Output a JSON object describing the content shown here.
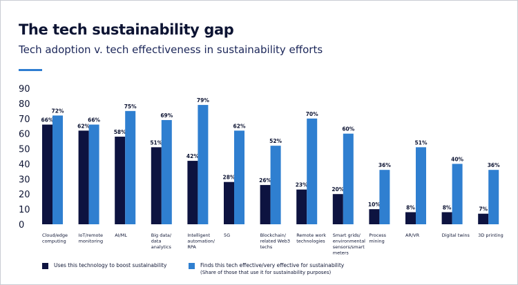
{
  "title": "The tech sustainability gap",
  "subtitle": "Tech adoption v. tech effectiveness in sustainability efforts",
  "colors": {
    "series_uses": "#0d1340",
    "series_effective": "#2f7fd0",
    "accent": "#2e7dd1"
  },
  "legend": {
    "uses": "Uses this technology to boost sustainability",
    "effective": "Finds this tech effective/very effective for sustainability",
    "effective_note": "(Share of those that use it for sustainability purposes)"
  },
  "chart_data": {
    "type": "bar",
    "title": "The tech sustainability gap",
    "subtitle": "Tech adoption v. tech effectiveness in sustainability efforts",
    "categories": [
      [
        "Cloud/edge",
        "computing"
      ],
      [
        "IoT/remote",
        "monitoring"
      ],
      [
        "AI/ML"
      ],
      [
        "Big data/",
        "data",
        "analytics"
      ],
      [
        "Intelligent",
        "automation/",
        "RPA"
      ],
      [
        "5G"
      ],
      [
        "Blockchain/",
        "related Web3",
        "techs"
      ],
      [
        "Remote work",
        "technologies"
      ],
      [
        "Smart grids/",
        "environmental",
        "sensors/smart",
        "meters"
      ],
      [
        "Process",
        "mining"
      ],
      [
        "AR/VR"
      ],
      [
        "Digital twins"
      ],
      [
        "3D printing"
      ]
    ],
    "series": [
      {
        "name": "Uses this technology to boost sustainability",
        "values": [
          66,
          62,
          58,
          51,
          42,
          28,
          26,
          23,
          20,
          10,
          8,
          8,
          7
        ]
      },
      {
        "name": "Finds this tech effective/very effective for sustainability",
        "values": [
          72,
          66,
          75,
          69,
          79,
          62,
          52,
          70,
          60,
          36,
          51,
          40,
          36
        ]
      }
    ],
    "value_suffix": "%",
    "yticks": [
      "0",
      "10",
      "20",
      "30",
      "40",
      "50",
      "60",
      "70",
      "80",
      "90"
    ],
    "ylim": [
      0,
      90
    ],
    "xlabel": "",
    "ylabel": "",
    "grid": false,
    "legend_position": "bottom"
  }
}
